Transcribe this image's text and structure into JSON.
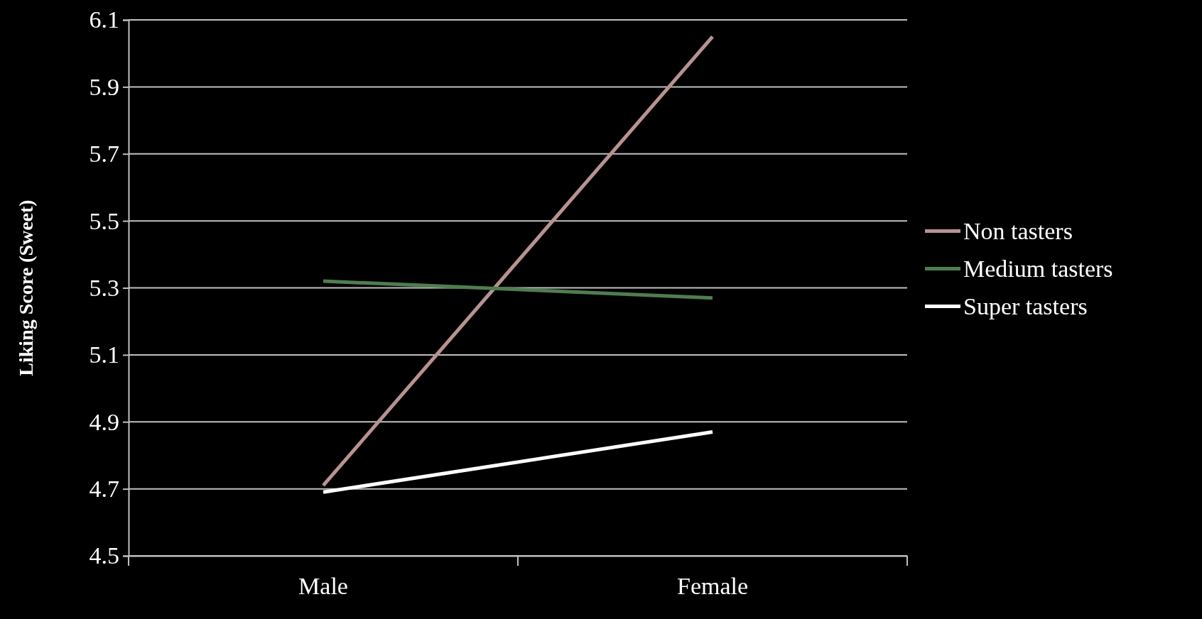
{
  "chart_data": {
    "type": "line",
    "ylabel": "Liking Score (Sweet)",
    "categories": [
      "Male",
      "Female"
    ],
    "series": [
      {
        "name": "Non tasters",
        "color": "#b89292",
        "values": [
          4.71,
          6.05
        ]
      },
      {
        "name": "Medium tasters",
        "color": "#4f7d4f",
        "values": [
          5.32,
          5.27
        ]
      },
      {
        "name": "Super tasters",
        "color": "#ffffff",
        "values": [
          4.69,
          4.87
        ]
      }
    ],
    "ylim": [
      4.5,
      6.1
    ],
    "yticks": [
      4.5,
      4.7,
      4.9,
      5.1,
      5.3,
      5.5,
      5.7,
      5.9,
      6.1
    ],
    "grid": "y",
    "legend": "right",
    "marker": "none",
    "line_style": "solid"
  }
}
